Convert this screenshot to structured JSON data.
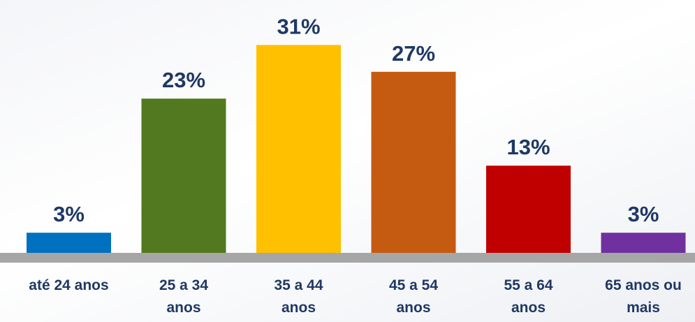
{
  "chart_data": {
    "type": "bar",
    "categories": [
      "até 24 anos",
      "25 a 34\nanos",
      "35 a 44\nanos",
      "45 a 54\nanos",
      "55 a 64\nanos",
      "65 anos ou\nmais"
    ],
    "values": [
      3,
      23,
      31,
      27,
      13,
      3
    ],
    "value_labels": [
      "3%",
      "23%",
      "31%",
      "27%",
      "13%",
      "3%"
    ],
    "colors": [
      "#0070c0",
      "#52791f",
      "#ffc000",
      "#c55a11",
      "#c00000",
      "#7030a0"
    ]
  }
}
